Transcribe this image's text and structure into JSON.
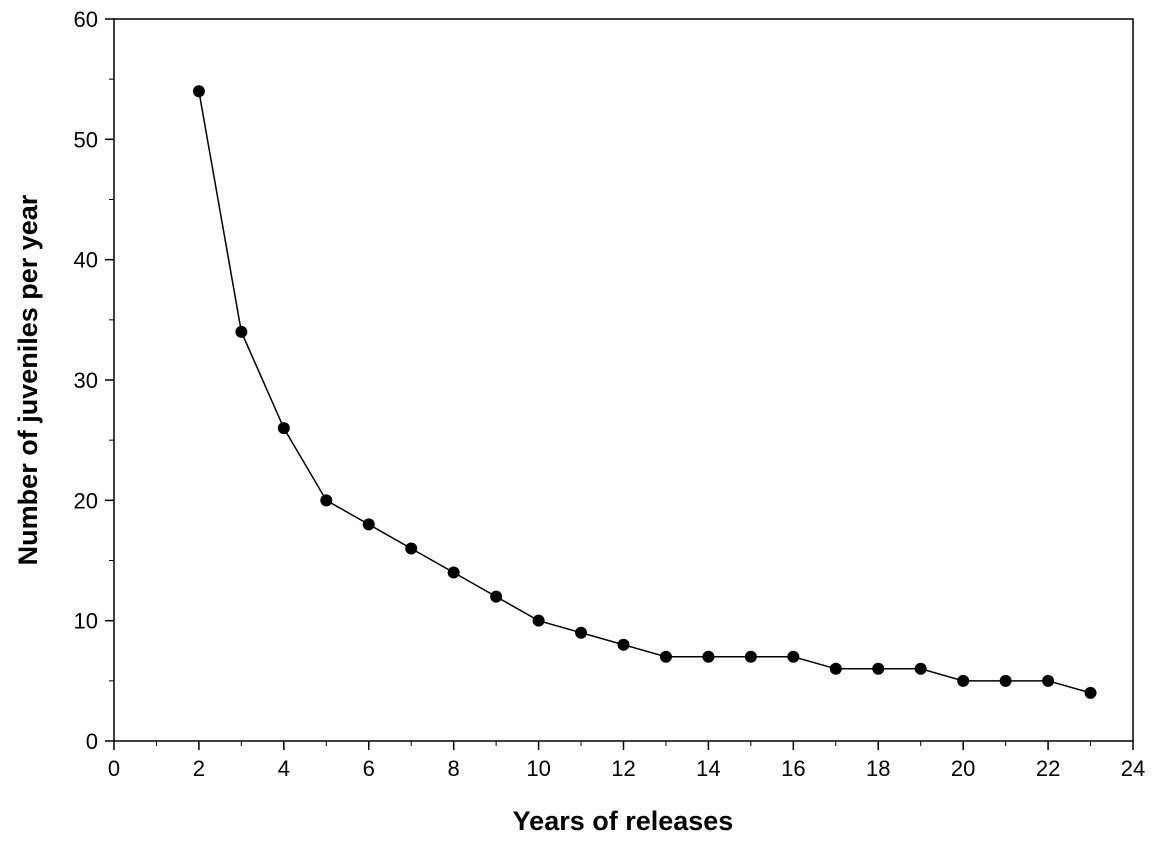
{
  "chart_data": {
    "type": "line",
    "xlabel": "Years of releases",
    "ylabel": "Number of juveniles per year",
    "xlim": [
      0,
      24
    ],
    "ylim": [
      0,
      60
    ],
    "x_ticks": [
      0,
      2,
      4,
      6,
      8,
      10,
      12,
      14,
      16,
      18,
      20,
      22,
      24
    ],
    "y_ticks": [
      0,
      10,
      20,
      30,
      40,
      50,
      60
    ],
    "grid": false,
    "series": [
      {
        "x": [
          2,
          3,
          4,
          5,
          6,
          7,
          8,
          9,
          10,
          11,
          12,
          13,
          14,
          15,
          16,
          17,
          18,
          19,
          20,
          21,
          22,
          23
        ],
        "y": [
          54,
          34,
          26,
          20,
          18,
          16,
          14,
          12,
          10,
          9,
          8,
          7,
          7,
          7,
          7,
          6,
          6,
          6,
          5,
          5,
          5,
          4
        ],
        "color": "#000000",
        "marker": "filled-circle"
      }
    ]
  }
}
